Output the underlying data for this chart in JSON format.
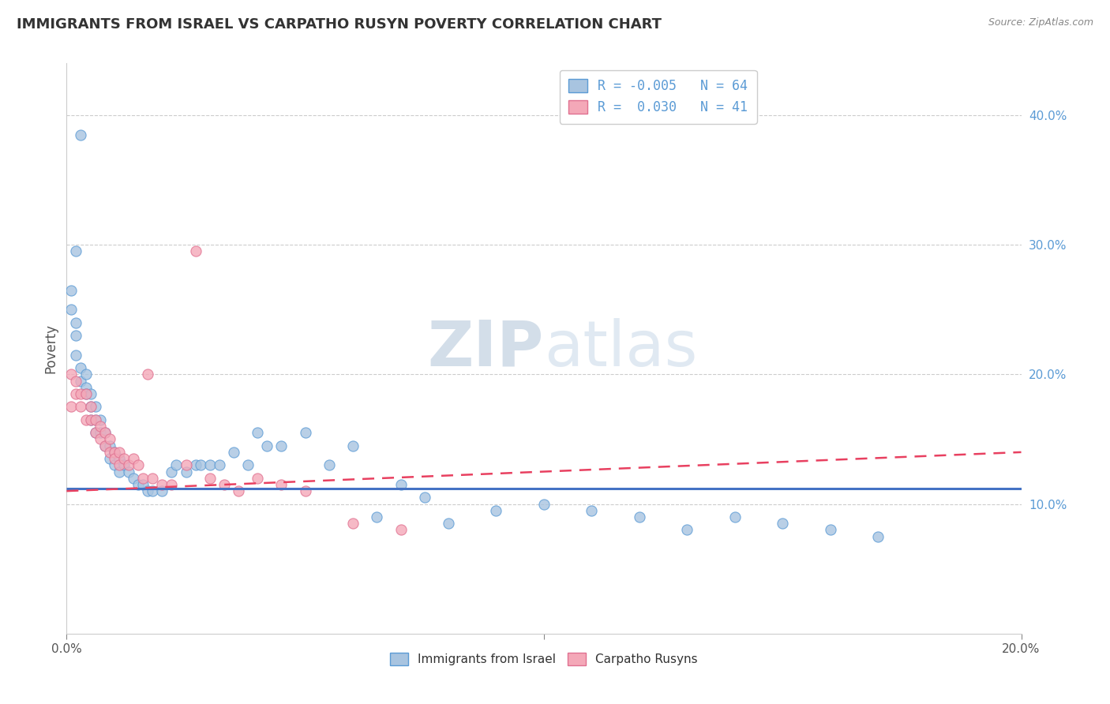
{
  "title": "IMMIGRANTS FROM ISRAEL VS CARPATHO RUSYN POVERTY CORRELATION CHART",
  "source": "Source: ZipAtlas.com",
  "ylabel": "Poverty",
  "xlim": [
    0.0,
    0.2
  ],
  "ylim": [
    0.0,
    0.44
  ],
  "ytick_vals": [
    0.1,
    0.2,
    0.3,
    0.4
  ],
  "ytick_labels": [
    "10.0%",
    "20.0%",
    "30.0%",
    "40.0%"
  ],
  "xtick_vals": [
    0.0,
    0.1,
    0.2
  ],
  "xtick_labels": [
    "0.0%",
    "",
    "20.0%"
  ],
  "grid_color": "#cccccc",
  "color_blue": "#a8c4e0",
  "color_pink": "#f4a8b8",
  "edge_blue": "#5b9bd5",
  "edge_pink": "#e07090",
  "trend_blue": "#4472c4",
  "trend_pink": "#e84060",
  "watermark_color": "#ccd8e8",
  "israel_x": [
    0.003,
    0.002,
    0.001,
    0.001,
    0.002,
    0.002,
    0.002,
    0.003,
    0.003,
    0.004,
    0.004,
    0.004,
    0.005,
    0.005,
    0.005,
    0.006,
    0.006,
    0.006,
    0.007,
    0.007,
    0.008,
    0.008,
    0.009,
    0.009,
    0.01,
    0.01,
    0.011,
    0.011,
    0.012,
    0.013,
    0.014,
    0.015,
    0.016,
    0.017,
    0.018,
    0.02,
    0.022,
    0.023,
    0.025,
    0.027,
    0.028,
    0.03,
    0.032,
    0.035,
    0.038,
    0.04,
    0.042,
    0.045,
    0.05,
    0.055,
    0.06,
    0.065,
    0.07,
    0.075,
    0.08,
    0.09,
    0.1,
    0.11,
    0.12,
    0.13,
    0.14,
    0.15,
    0.16,
    0.17
  ],
  "israel_y": [
    0.385,
    0.295,
    0.265,
    0.25,
    0.24,
    0.23,
    0.215,
    0.205,
    0.195,
    0.2,
    0.19,
    0.185,
    0.185,
    0.175,
    0.165,
    0.175,
    0.165,
    0.155,
    0.165,
    0.155,
    0.155,
    0.145,
    0.145,
    0.135,
    0.14,
    0.13,
    0.135,
    0.125,
    0.13,
    0.125,
    0.12,
    0.115,
    0.115,
    0.11,
    0.11,
    0.11,
    0.125,
    0.13,
    0.125,
    0.13,
    0.13,
    0.13,
    0.13,
    0.14,
    0.13,
    0.155,
    0.145,
    0.145,
    0.155,
    0.13,
    0.145,
    0.09,
    0.115,
    0.105,
    0.085,
    0.095,
    0.1,
    0.095,
    0.09,
    0.08,
    0.09,
    0.085,
    0.08,
    0.075
  ],
  "rusyn_x": [
    0.001,
    0.001,
    0.002,
    0.002,
    0.003,
    0.003,
    0.004,
    0.004,
    0.005,
    0.005,
    0.006,
    0.006,
    0.007,
    0.007,
    0.008,
    0.008,
    0.009,
    0.009,
    0.01,
    0.01,
    0.011,
    0.011,
    0.012,
    0.013,
    0.014,
    0.015,
    0.016,
    0.017,
    0.018,
    0.02,
    0.022,
    0.025,
    0.027,
    0.03,
    0.033,
    0.036,
    0.04,
    0.045,
    0.05,
    0.06,
    0.07
  ],
  "rusyn_y": [
    0.2,
    0.175,
    0.195,
    0.185,
    0.185,
    0.175,
    0.185,
    0.165,
    0.175,
    0.165,
    0.165,
    0.155,
    0.16,
    0.15,
    0.155,
    0.145,
    0.15,
    0.14,
    0.14,
    0.135,
    0.14,
    0.13,
    0.135,
    0.13,
    0.135,
    0.13,
    0.12,
    0.2,
    0.12,
    0.115,
    0.115,
    0.13,
    0.295,
    0.12,
    0.115,
    0.11,
    0.12,
    0.115,
    0.11,
    0.085,
    0.08
  ],
  "blue_trend_start": 0.112,
  "blue_trend_end": 0.112,
  "pink_trend_x0": 0.0,
  "pink_trend_y0": 0.11,
  "pink_trend_x1": 0.2,
  "pink_trend_y1": 0.14
}
